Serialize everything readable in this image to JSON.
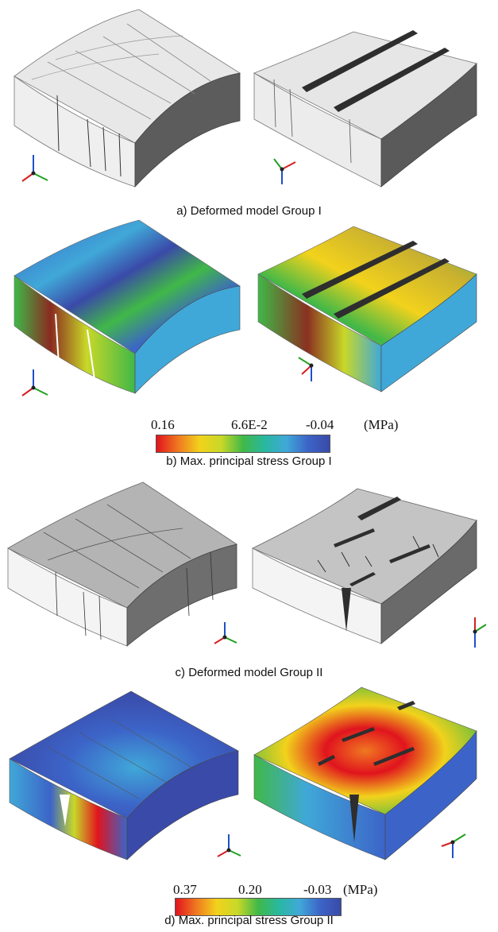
{
  "figure": {
    "panels": [
      {
        "id": "a",
        "caption": "a) Deformed model Group I",
        "type": "deformed"
      },
      {
        "id": "b",
        "caption": "b) Max. principal stress Group I",
        "type": "stress",
        "legend": {
          "ticks": [
            "0.16",
            "6.6E-2",
            "-0.04"
          ],
          "unit": "(MPa)"
        }
      },
      {
        "id": "c",
        "caption": "c) Deformed model Group II",
        "type": "deformed"
      },
      {
        "id": "d",
        "caption": "d) Max. principal stress Group II",
        "type": "stress",
        "legend": {
          "ticks": [
            "0.37",
            "0.20",
            "-0.03"
          ],
          "unit": "(MPa)"
        }
      }
    ],
    "colors": {
      "top_face": "#e9e9e9",
      "front_face": "#f4f4f4",
      "side_face": "#5a5a5a",
      "crack": "#2e2e2e",
      "scale": [
        "#e0141e",
        "#f07820",
        "#f2d21c",
        "#c8d828",
        "#40b848",
        "#28b8a0",
        "#40a8d8",
        "#3c64c8",
        "#3a4aa8"
      ],
      "axis_x": "#d42020",
      "axis_y": "#20a020",
      "axis_z": "#2050c8"
    }
  }
}
